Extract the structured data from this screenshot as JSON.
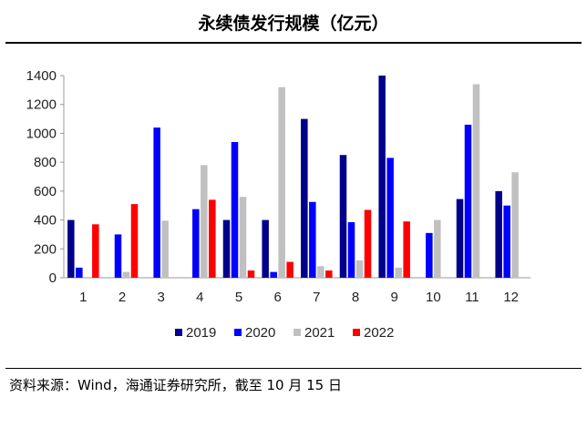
{
  "title": "永续债发行规模（亿元）",
  "source": "资料来源：Wind，海通证券研究所，截至 10 月 15 日",
  "chart_data": {
    "type": "bar",
    "title": "永续债发行规模（亿元）",
    "xlabel": "",
    "ylabel": "",
    "categories": [
      "1",
      "2",
      "3",
      "4",
      "5",
      "6",
      "7",
      "8",
      "9",
      "10",
      "11",
      "12"
    ],
    "ylim": [
      0,
      1400
    ],
    "yticks": [
      0,
      200,
      400,
      600,
      800,
      1000,
      1200,
      1400
    ],
    "legend_position": "bottom",
    "series": [
      {
        "name": "2019",
        "color": "#00008b",
        "values": [
          400,
          0,
          0,
          0,
          400,
          400,
          1100,
          850,
          1400,
          0,
          545,
          600
        ]
      },
      {
        "name": "2020",
        "color": "#0000ff",
        "values": [
          70,
          300,
          1040,
          475,
          940,
          40,
          525,
          385,
          830,
          310,
          1060,
          500
        ]
      },
      {
        "name": "2021",
        "color": "#c0c0c0",
        "values": [
          0,
          40,
          395,
          780,
          560,
          1320,
          80,
          120,
          70,
          400,
          1340,
          730
        ]
      },
      {
        "name": "2022",
        "color": "#ff0000",
        "values": [
          370,
          510,
          0,
          540,
          50,
          110,
          50,
          470,
          390,
          0,
          0,
          0
        ]
      }
    ]
  }
}
